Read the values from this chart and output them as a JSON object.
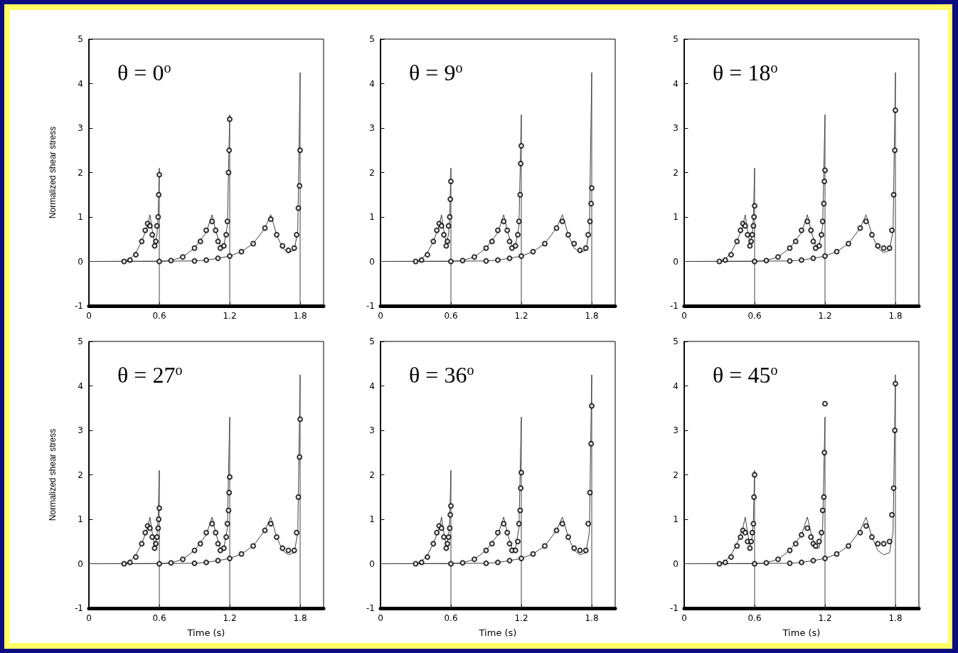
{
  "chart_data": [
    {
      "type": "line",
      "ylabel": "Normalized shear stress",
      "xlim": [
        0,
        2
      ],
      "ylim": [
        -1,
        5
      ],
      "xticks": [
        0,
        0.6,
        1.2,
        1.8
      ],
      "yticks": [
        -1,
        0,
        1,
        2,
        3,
        4,
        5
      ],
      "annotations": [
        "θ = 0$^{o}$"
      ],
      "series": [
        {
          "color": "#404040",
          "marker": "none",
          "line_style": "solid",
          "x": [
            0,
            0.3,
            0.35,
            0.4,
            0.45,
            0.5,
            0.52,
            0.54,
            0.56,
            0.58,
            0.59,
            0.6,
            0.6
          ],
          "values": [
            0,
            0,
            0.05,
            0.2,
            0.45,
            0.8,
            1.05,
            0.7,
            0.4,
            0.6,
            1.0,
            2.1,
            -1
          ]
        },
        {
          "color": "#404040",
          "marker": "none",
          "line_style": "solid",
          "x": [
            0,
            0.6,
            0.7,
            0.8,
            0.9,
            1.0,
            1.05,
            1.08,
            1.12,
            1.15,
            1.18,
            1.2,
            1.2
          ],
          "values": [
            0,
            0,
            0.02,
            0.1,
            0.3,
            0.65,
            1.05,
            0.7,
            0.35,
            0.35,
            0.8,
            3.3,
            -1
          ]
        },
        {
          "color": "#404040",
          "marker": "none",
          "line_style": "solid",
          "x": [
            0,
            0.9,
            1.0,
            1.1,
            1.2,
            1.3,
            1.4,
            1.5,
            1.55,
            1.6,
            1.65,
            1.7,
            1.75,
            1.78,
            1.8,
            1.8
          ],
          "values": [
            0,
            0.01,
            0.03,
            0.07,
            0.12,
            0.22,
            0.4,
            0.75,
            1.05,
            0.6,
            0.3,
            0.2,
            0.25,
            0.7,
            4.25,
            -1
          ]
        },
        {
          "type": "scatter",
          "color": "#000000",
          "marker": "circle",
          "x": [
            0.3,
            0.35,
            0.4,
            0.45,
            0.48,
            0.5,
            0.52,
            0.54,
            0.56,
            0.57,
            0.58,
            0.59,
            0.595,
            0.6
          ],
          "values": [
            0,
            0.03,
            0.15,
            0.45,
            0.7,
            0.85,
            0.8,
            0.6,
            0.35,
            0.45,
            0.8,
            1.0,
            1.5,
            1.95
          ]
        },
        {
          "type": "scatter",
          "color": "#000000",
          "marker": "circle",
          "x": [
            0.6,
            0.7,
            0.8,
            0.9,
            0.95,
            1.0,
            1.05,
            1.08,
            1.1,
            1.12,
            1.15,
            1.17,
            1.18,
            1.19,
            1.195,
            1.2
          ],
          "values": [
            0,
            0.02,
            0.1,
            0.3,
            0.45,
            0.7,
            0.9,
            0.7,
            0.45,
            0.3,
            0.35,
            0.6,
            0.9,
            2.0,
            2.5,
            3.2
          ]
        },
        {
          "type": "scatter",
          "color": "#000000",
          "marker": "circle",
          "x": [
            0.9,
            1.0,
            1.1,
            1.2,
            1.3,
            1.4,
            1.5,
            1.55,
            1.6,
            1.65,
            1.7,
            1.75,
            1.77,
            1.785,
            1.795,
            1.8
          ],
          "values": [
            0.01,
            0.03,
            0.07,
            0.12,
            0.22,
            0.4,
            0.75,
            0.95,
            0.6,
            0.35,
            0.25,
            0.3,
            0.6,
            1.2,
            1.7,
            2.5
          ]
        }
      ]
    },
    {
      "type": "line",
      "xlim": [
        0,
        2
      ],
      "ylim": [
        -1,
        5
      ],
      "xticks": [
        0,
        0.6,
        1.2,
        1.8
      ],
      "yticks": [
        -1,
        0,
        1,
        2,
        3,
        4,
        5
      ],
      "annotations": [
        "θ = 9$^{o}$"
      ],
      "series": [
        {
          "color": "#404040",
          "marker": "none",
          "line_style": "solid",
          "x": [
            0,
            0.3,
            0.35,
            0.4,
            0.45,
            0.5,
            0.52,
            0.54,
            0.56,
            0.58,
            0.59,
            0.6,
            0.6
          ],
          "values": [
            0,
            0,
            0.05,
            0.2,
            0.45,
            0.8,
            1.05,
            0.7,
            0.4,
            0.6,
            1.0,
            2.1,
            -1
          ]
        },
        {
          "color": "#404040",
          "marker": "none",
          "line_style": "solid",
          "x": [
            0,
            0.6,
            0.7,
            0.8,
            0.9,
            1.0,
            1.05,
            1.08,
            1.12,
            1.15,
            1.18,
            1.2,
            1.2
          ],
          "values": [
            0,
            0,
            0.02,
            0.1,
            0.3,
            0.65,
            1.05,
            0.7,
            0.35,
            0.35,
            0.8,
            3.3,
            -1
          ]
        },
        {
          "color": "#404040",
          "marker": "none",
          "line_style": "solid",
          "x": [
            0,
            0.9,
            1.0,
            1.1,
            1.2,
            1.3,
            1.4,
            1.5,
            1.55,
            1.6,
            1.65,
            1.7,
            1.75,
            1.78,
            1.8,
            1.8
          ],
          "values": [
            0,
            0.01,
            0.03,
            0.07,
            0.12,
            0.22,
            0.4,
            0.75,
            1.05,
            0.6,
            0.3,
            0.2,
            0.25,
            0.7,
            4.25,
            -1
          ]
        },
        {
          "type": "scatter",
          "color": "#000000",
          "marker": "circle",
          "x": [
            0.3,
            0.35,
            0.4,
            0.45,
            0.48,
            0.5,
            0.52,
            0.54,
            0.56,
            0.57,
            0.58,
            0.59,
            0.595,
            0.6
          ],
          "values": [
            0,
            0.03,
            0.15,
            0.45,
            0.7,
            0.85,
            0.8,
            0.6,
            0.35,
            0.45,
            0.8,
            1.0,
            1.4,
            1.8
          ]
        },
        {
          "type": "scatter",
          "color": "#000000",
          "marker": "circle",
          "x": [
            0.6,
            0.7,
            0.8,
            0.9,
            0.95,
            1.0,
            1.05,
            1.08,
            1.1,
            1.12,
            1.15,
            1.17,
            1.18,
            1.19,
            1.195,
            1.2
          ],
          "values": [
            0,
            0.02,
            0.1,
            0.3,
            0.45,
            0.7,
            0.9,
            0.7,
            0.45,
            0.3,
            0.35,
            0.6,
            0.9,
            1.5,
            2.2,
            2.6
          ]
        },
        {
          "type": "scatter",
          "color": "#000000",
          "marker": "circle",
          "x": [
            0.9,
            1.0,
            1.1,
            1.2,
            1.3,
            1.4,
            1.5,
            1.55,
            1.6,
            1.65,
            1.7,
            1.75,
            1.77,
            1.785,
            1.795,
            1.8
          ],
          "values": [
            0.01,
            0.03,
            0.07,
            0.12,
            0.22,
            0.4,
            0.75,
            0.9,
            0.6,
            0.4,
            0.25,
            0.3,
            0.6,
            0.9,
            1.3,
            1.65
          ]
        }
      ]
    },
    {
      "type": "line",
      "xlim": [
        0,
        2
      ],
      "ylim": [
        -1,
        5
      ],
      "xticks": [
        0,
        0.6,
        1.2,
        1.8
      ],
      "yticks": [
        -1,
        0,
        1,
        2,
        3,
        4,
        5
      ],
      "annotations": [
        "θ = 18$^{o}$"
      ],
      "series": [
        {
          "color": "#404040",
          "marker": "none",
          "line_style": "solid",
          "x": [
            0,
            0.3,
            0.35,
            0.4,
            0.45,
            0.5,
            0.52,
            0.54,
            0.56,
            0.58,
            0.59,
            0.6,
            0.6
          ],
          "values": [
            0,
            0,
            0.05,
            0.2,
            0.45,
            0.8,
            1.05,
            0.7,
            0.4,
            0.6,
            1.0,
            2.1,
            -1
          ]
        },
        {
          "color": "#404040",
          "marker": "none",
          "line_style": "solid",
          "x": [
            0,
            0.6,
            0.7,
            0.8,
            0.9,
            1.0,
            1.05,
            1.08,
            1.12,
            1.15,
            1.18,
            1.2,
            1.2
          ],
          "values": [
            0,
            0,
            0.02,
            0.1,
            0.3,
            0.65,
            1.05,
            0.7,
            0.35,
            0.35,
            0.8,
            3.3,
            -1
          ]
        },
        {
          "color": "#404040",
          "marker": "none",
          "line_style": "solid",
          "x": [
            0,
            0.9,
            1.0,
            1.1,
            1.2,
            1.3,
            1.4,
            1.5,
            1.55,
            1.6,
            1.65,
            1.7,
            1.75,
            1.78,
            1.8,
            1.8
          ],
          "values": [
            0,
            0.01,
            0.03,
            0.07,
            0.12,
            0.22,
            0.4,
            0.75,
            1.05,
            0.6,
            0.3,
            0.2,
            0.25,
            0.7,
            4.25,
            -1
          ]
        },
        {
          "type": "scatter",
          "color": "#000000",
          "marker": "circle",
          "x": [
            0.3,
            0.35,
            0.4,
            0.45,
            0.48,
            0.5,
            0.52,
            0.54,
            0.56,
            0.57,
            0.58,
            0.59,
            0.595,
            0.6
          ],
          "values": [
            0,
            0.03,
            0.15,
            0.45,
            0.7,
            0.85,
            0.8,
            0.6,
            0.35,
            0.45,
            0.6,
            0.8,
            1.0,
            1.25
          ]
        },
        {
          "type": "scatter",
          "color": "#000000",
          "marker": "circle",
          "x": [
            0.6,
            0.7,
            0.8,
            0.9,
            0.95,
            1.0,
            1.05,
            1.08,
            1.1,
            1.12,
            1.15,
            1.17,
            1.18,
            1.19,
            1.195,
            1.2
          ],
          "values": [
            0,
            0.02,
            0.1,
            0.3,
            0.45,
            0.7,
            0.9,
            0.7,
            0.45,
            0.3,
            0.35,
            0.6,
            0.9,
            1.3,
            1.8,
            2.05
          ]
        },
        {
          "type": "scatter",
          "color": "#000000",
          "marker": "circle",
          "x": [
            0.9,
            1.0,
            1.1,
            1.2,
            1.3,
            1.4,
            1.5,
            1.55,
            1.6,
            1.65,
            1.7,
            1.75,
            1.77,
            1.785,
            1.795,
            1.8
          ],
          "values": [
            0.01,
            0.03,
            0.07,
            0.12,
            0.22,
            0.4,
            0.75,
            0.9,
            0.6,
            0.35,
            0.3,
            0.3,
            0.7,
            1.5,
            2.5,
            3.4
          ]
        }
      ]
    },
    {
      "type": "line",
      "ylabel": "Normalized shear stress",
      "xlabel": "Time (s)",
      "xlim": [
        0,
        2
      ],
      "ylim": [
        -1,
        5
      ],
      "xticks": [
        0,
        0.6,
        1.2,
        1.8
      ],
      "yticks": [
        -1,
        0,
        1,
        2,
        3,
        4,
        5
      ],
      "annotations": [
        "θ = 27$^{o}$"
      ],
      "series": [
        {
          "color": "#404040",
          "marker": "none",
          "line_style": "solid",
          "x": [
            0,
            0.3,
            0.35,
            0.4,
            0.45,
            0.5,
            0.52,
            0.54,
            0.56,
            0.58,
            0.59,
            0.6,
            0.6
          ],
          "values": [
            0,
            0,
            0.05,
            0.2,
            0.45,
            0.8,
            1.05,
            0.7,
            0.4,
            0.6,
            1.0,
            2.1,
            -1
          ]
        },
        {
          "color": "#404040",
          "marker": "none",
          "line_style": "solid",
          "x": [
            0,
            0.6,
            0.7,
            0.8,
            0.9,
            1.0,
            1.05,
            1.08,
            1.12,
            1.15,
            1.18,
            1.2,
            1.2
          ],
          "values": [
            0,
            0,
            0.02,
            0.1,
            0.3,
            0.65,
            1.05,
            0.7,
            0.35,
            0.35,
            0.8,
            3.3,
            -1
          ]
        },
        {
          "color": "#404040",
          "marker": "none",
          "line_style": "solid",
          "x": [
            0,
            0.9,
            1.0,
            1.1,
            1.2,
            1.3,
            1.4,
            1.5,
            1.55,
            1.6,
            1.65,
            1.7,
            1.75,
            1.78,
            1.8,
            1.8
          ],
          "values": [
            0,
            0.01,
            0.03,
            0.07,
            0.12,
            0.22,
            0.4,
            0.75,
            1.05,
            0.6,
            0.3,
            0.2,
            0.25,
            0.7,
            4.25,
            -1
          ]
        },
        {
          "type": "scatter",
          "color": "#000000",
          "marker": "circle",
          "x": [
            0.3,
            0.35,
            0.4,
            0.45,
            0.48,
            0.5,
            0.52,
            0.54,
            0.56,
            0.57,
            0.58,
            0.59,
            0.595,
            0.6
          ],
          "values": [
            0,
            0.03,
            0.15,
            0.45,
            0.7,
            0.85,
            0.8,
            0.6,
            0.35,
            0.45,
            0.6,
            0.8,
            1.0,
            1.25
          ]
        },
        {
          "type": "scatter",
          "color": "#000000",
          "marker": "circle",
          "x": [
            0.6,
            0.7,
            0.8,
            0.9,
            0.95,
            1.0,
            1.05,
            1.08,
            1.1,
            1.12,
            1.15,
            1.17,
            1.18,
            1.19,
            1.195,
            1.2
          ],
          "values": [
            0,
            0.02,
            0.1,
            0.3,
            0.45,
            0.7,
            0.9,
            0.7,
            0.45,
            0.3,
            0.35,
            0.6,
            0.9,
            1.2,
            1.6,
            1.95
          ]
        },
        {
          "type": "scatter",
          "color": "#000000",
          "marker": "circle",
          "x": [
            0.9,
            1.0,
            1.1,
            1.2,
            1.3,
            1.4,
            1.5,
            1.55,
            1.6,
            1.65,
            1.7,
            1.75,
            1.77,
            1.785,
            1.795,
            1.8
          ],
          "values": [
            0.01,
            0.03,
            0.07,
            0.12,
            0.22,
            0.4,
            0.75,
            0.9,
            0.6,
            0.35,
            0.3,
            0.3,
            0.7,
            1.5,
            2.4,
            3.25
          ]
        }
      ]
    },
    {
      "type": "line",
      "xlabel": "Time (s)",
      "xlim": [
        0,
        2
      ],
      "ylim": [
        -1,
        5
      ],
      "xticks": [
        0,
        0.6,
        1.2,
        1.8
      ],
      "yticks": [
        -1,
        0,
        1,
        2,
        3,
        4,
        5
      ],
      "annotations": [
        "θ = 36$^{o}$"
      ],
      "series": [
        {
          "color": "#404040",
          "marker": "none",
          "line_style": "solid",
          "x": [
            0,
            0.3,
            0.35,
            0.4,
            0.45,
            0.5,
            0.52,
            0.54,
            0.56,
            0.58,
            0.59,
            0.6,
            0.6
          ],
          "values": [
            0,
            0,
            0.05,
            0.2,
            0.45,
            0.8,
            1.05,
            0.7,
            0.4,
            0.6,
            1.0,
            2.1,
            -1
          ]
        },
        {
          "color": "#404040",
          "marker": "none",
          "line_style": "solid",
          "x": [
            0,
            0.6,
            0.7,
            0.8,
            0.9,
            1.0,
            1.05,
            1.08,
            1.12,
            1.15,
            1.18,
            1.2,
            1.2
          ],
          "values": [
            0,
            0,
            0.02,
            0.1,
            0.3,
            0.65,
            1.05,
            0.7,
            0.35,
            0.35,
            0.8,
            3.3,
            -1
          ]
        },
        {
          "color": "#404040",
          "marker": "none",
          "line_style": "solid",
          "x": [
            0,
            0.9,
            1.0,
            1.1,
            1.2,
            1.3,
            1.4,
            1.5,
            1.55,
            1.6,
            1.65,
            1.7,
            1.75,
            1.78,
            1.8,
            1.8
          ],
          "values": [
            0,
            0.01,
            0.03,
            0.07,
            0.12,
            0.22,
            0.4,
            0.75,
            1.05,
            0.6,
            0.3,
            0.2,
            0.25,
            0.7,
            4.25,
            -1
          ]
        },
        {
          "type": "scatter",
          "color": "#000000",
          "marker": "circle",
          "x": [
            0.3,
            0.35,
            0.4,
            0.45,
            0.48,
            0.5,
            0.52,
            0.54,
            0.56,
            0.57,
            0.58,
            0.59,
            0.595,
            0.6
          ],
          "values": [
            0,
            0.03,
            0.15,
            0.45,
            0.7,
            0.85,
            0.8,
            0.6,
            0.35,
            0.45,
            0.6,
            0.8,
            1.1,
            1.3
          ]
        },
        {
          "type": "scatter",
          "color": "#000000",
          "marker": "circle",
          "x": [
            0.6,
            0.7,
            0.8,
            0.9,
            0.95,
            1.0,
            1.05,
            1.08,
            1.1,
            1.12,
            1.15,
            1.17,
            1.18,
            1.19,
            1.195,
            1.2
          ],
          "values": [
            0,
            0.02,
            0.1,
            0.3,
            0.45,
            0.7,
            0.9,
            0.7,
            0.45,
            0.3,
            0.3,
            0.5,
            0.9,
            1.2,
            1.7,
            2.05
          ]
        },
        {
          "type": "scatter",
          "color": "#000000",
          "marker": "circle",
          "x": [
            0.9,
            1.0,
            1.1,
            1.2,
            1.3,
            1.4,
            1.5,
            1.55,
            1.6,
            1.65,
            1.7,
            1.75,
            1.77,
            1.785,
            1.795,
            1.8
          ],
          "values": [
            0.01,
            0.03,
            0.07,
            0.12,
            0.22,
            0.4,
            0.75,
            0.9,
            0.6,
            0.35,
            0.3,
            0.3,
            0.9,
            1.6,
            2.7,
            3.55
          ]
        }
      ]
    },
    {
      "type": "line",
      "xlabel": "Time (s)",
      "xlim": [
        0,
        2
      ],
      "ylim": [
        -1,
        5
      ],
      "xticks": [
        0,
        0.6,
        1.2,
        1.8
      ],
      "yticks": [
        -1,
        0,
        1,
        2,
        3,
        4,
        5
      ],
      "annotations": [
        "θ = 45$^{o}$"
      ],
      "series": [
        {
          "color": "#404040",
          "marker": "none",
          "line_style": "solid",
          "x": [
            0,
            0.3,
            0.35,
            0.4,
            0.45,
            0.5,
            0.52,
            0.54,
            0.56,
            0.58,
            0.59,
            0.6,
            0.6
          ],
          "values": [
            0,
            0,
            0.05,
            0.2,
            0.45,
            0.8,
            1.05,
            0.7,
            0.4,
            0.6,
            1.0,
            2.1,
            -1
          ]
        },
        {
          "color": "#404040",
          "marker": "none",
          "line_style": "solid",
          "x": [
            0,
            0.6,
            0.7,
            0.8,
            0.9,
            1.0,
            1.05,
            1.08,
            1.12,
            1.15,
            1.18,
            1.2,
            1.2
          ],
          "values": [
            0,
            0,
            0.02,
            0.1,
            0.3,
            0.65,
            1.05,
            0.7,
            0.35,
            0.35,
            0.8,
            3.3,
            -1
          ]
        },
        {
          "color": "#404040",
          "marker": "none",
          "line_style": "solid",
          "x": [
            0,
            0.9,
            1.0,
            1.1,
            1.2,
            1.3,
            1.4,
            1.5,
            1.55,
            1.6,
            1.65,
            1.7,
            1.75,
            1.78,
            1.8,
            1.8
          ],
          "values": [
            0,
            0.01,
            0.03,
            0.07,
            0.12,
            0.22,
            0.4,
            0.75,
            1.05,
            0.6,
            0.3,
            0.2,
            0.25,
            0.7,
            4.25,
            -1
          ]
        },
        {
          "type": "scatter",
          "color": "#000000",
          "marker": "circle",
          "x": [
            0.3,
            0.35,
            0.4,
            0.45,
            0.48,
            0.5,
            0.52,
            0.54,
            0.56,
            0.57,
            0.58,
            0.59,
            0.595,
            0.6
          ],
          "values": [
            0,
            0.03,
            0.15,
            0.4,
            0.6,
            0.75,
            0.7,
            0.5,
            0.35,
            0.5,
            0.7,
            0.9,
            1.5,
            2.0
          ]
        },
        {
          "type": "scatter",
          "color": "#000000",
          "marker": "circle",
          "x": [
            0.6,
            0.7,
            0.8,
            0.9,
            0.95,
            1.0,
            1.05,
            1.08,
            1.1,
            1.12,
            1.15,
            1.17,
            1.18,
            1.19,
            1.195,
            1.2
          ],
          "values": [
            0,
            0.02,
            0.1,
            0.3,
            0.45,
            0.65,
            0.8,
            0.6,
            0.45,
            0.4,
            0.5,
            0.7,
            1.2,
            1.5,
            2.5,
            3.6
          ]
        },
        {
          "type": "scatter",
          "color": "#000000",
          "marker": "circle",
          "x": [
            0.9,
            1.0,
            1.1,
            1.2,
            1.3,
            1.4,
            1.5,
            1.55,
            1.6,
            1.65,
            1.7,
            1.75,
            1.77,
            1.785,
            1.795,
            1.8
          ],
          "values": [
            0.01,
            0.03,
            0.07,
            0.12,
            0.22,
            0.4,
            0.7,
            0.85,
            0.6,
            0.45,
            0.45,
            0.5,
            1.1,
            1.7,
            3.0,
            4.05
          ]
        }
      ]
    }
  ]
}
